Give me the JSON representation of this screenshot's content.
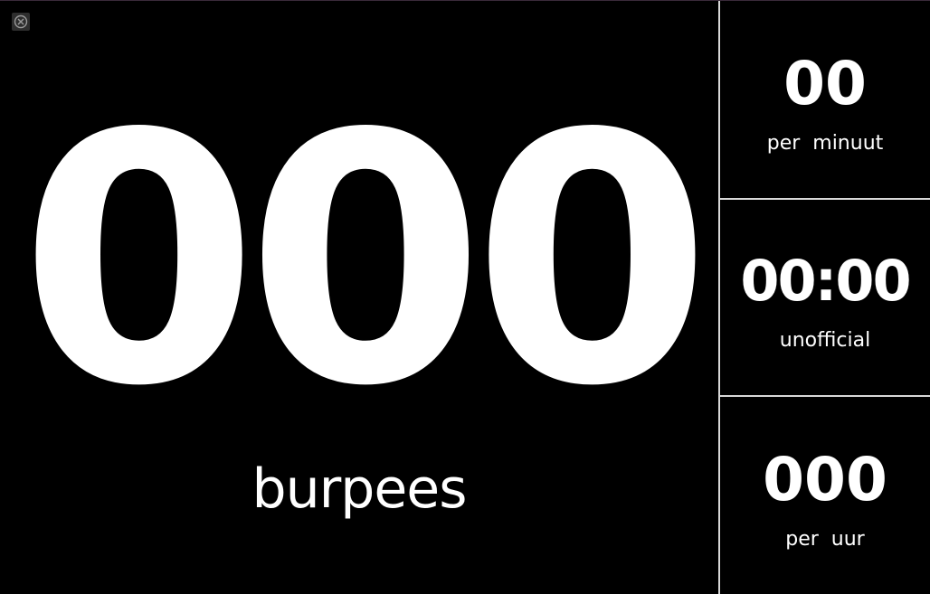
{
  "window": {
    "close_icon": "close-circle-icon"
  },
  "main": {
    "count": "000",
    "unit_label": "burpees"
  },
  "stats": {
    "per_minute": {
      "value": "00",
      "label": "per  minuut"
    },
    "timer": {
      "value": "00:00",
      "label": "unofficial"
    },
    "per_hour": {
      "value": "000",
      "label": "per  uur"
    }
  },
  "colors": {
    "background": "#000000",
    "text": "#ffffff",
    "divider": "#d8d8d8"
  }
}
